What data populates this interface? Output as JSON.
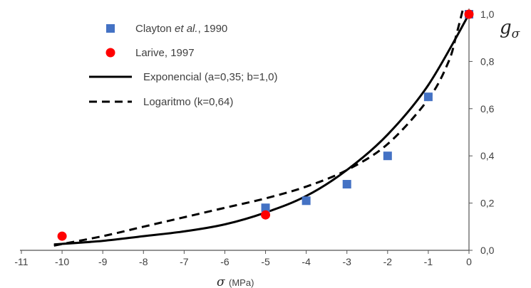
{
  "chart_data": {
    "type": "scatter",
    "title": "",
    "xlabel": {
      "symbol": "σ",
      "unit": "(MPa)"
    },
    "ylabel": {
      "base": "g",
      "sub": "σ"
    },
    "xlim": [
      -11,
      0
    ],
    "ylim": [
      0,
      1
    ],
    "x_ticks": [
      "-11",
      "-10",
      "-9",
      "-8",
      "-7",
      "-6",
      "-5",
      "-4",
      "-3",
      "-2",
      "-1",
      "0"
    ],
    "y_ticks": [
      "0,0",
      "0,2",
      "0,4",
      "0,6",
      "0,8",
      "1,0"
    ],
    "grid": false,
    "legend_position": "top-left",
    "series": [
      {
        "name": "Clayton et al., 1990",
        "name_parts": [
          "Clayton ",
          "et al.",
          ", 1990"
        ],
        "kind": "marker",
        "marker": "square",
        "color": "#4472c4",
        "points": [
          [
            -5,
            0.18
          ],
          [
            -4,
            0.21
          ],
          [
            -3,
            0.28
          ],
          [
            -2,
            0.4
          ],
          [
            -1,
            0.65
          ],
          [
            0,
            1.0
          ]
        ]
      },
      {
        "name": "Larive, 1997",
        "kind": "marker",
        "marker": "circle",
        "color": "#ff0000",
        "points": [
          [
            -10,
            0.06
          ],
          [
            -5,
            0.15
          ],
          [
            0,
            1.0
          ]
        ]
      },
      {
        "name": "Exponencial (a=0,35; b=1,0)",
        "kind": "line",
        "style": "solid",
        "color": "#000000",
        "points": [
          [
            -10.2,
            0.025
          ],
          [
            -9,
            0.04
          ],
          [
            -8,
            0.06
          ],
          [
            -7,
            0.08
          ],
          [
            -6,
            0.11
          ],
          [
            -5,
            0.16
          ],
          [
            -4,
            0.23
          ],
          [
            -3,
            0.34
          ],
          [
            -2,
            0.49
          ],
          [
            -1,
            0.7
          ],
          [
            0,
            1.0
          ]
        ]
      },
      {
        "name": "Logaritmo (k=0,64)",
        "kind": "line",
        "style": "dashed",
        "color": "#000000",
        "points": [
          [
            -10.2,
            0.02
          ],
          [
            -9,
            0.06
          ],
          [
            -8,
            0.1
          ],
          [
            -7,
            0.14
          ],
          [
            -6,
            0.18
          ],
          [
            -5,
            0.22
          ],
          [
            -4,
            0.27
          ],
          [
            -3,
            0.34
          ],
          [
            -2,
            0.45
          ],
          [
            -1,
            0.64
          ],
          [
            -0.5,
            0.8
          ],
          [
            -0.3,
            0.92
          ],
          [
            -0.15,
            1.02
          ]
        ]
      }
    ]
  }
}
